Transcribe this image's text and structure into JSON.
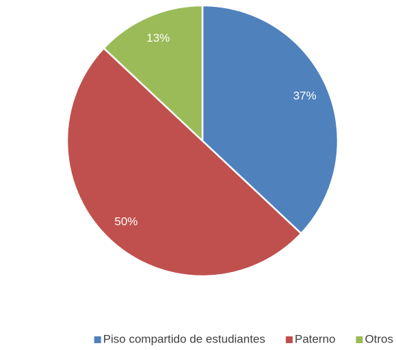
{
  "chart_data": {
    "type": "pie",
    "categories": [
      "Piso compartido de estudiantes",
      "Paterno",
      "Otros"
    ],
    "values": [
      37,
      50,
      13
    ],
    "value_labels": [
      "37%",
      "50%",
      "13%"
    ],
    "colors": [
      "#4f81bd",
      "#c0504d",
      "#9bbb59"
    ],
    "legend": "bottom"
  }
}
